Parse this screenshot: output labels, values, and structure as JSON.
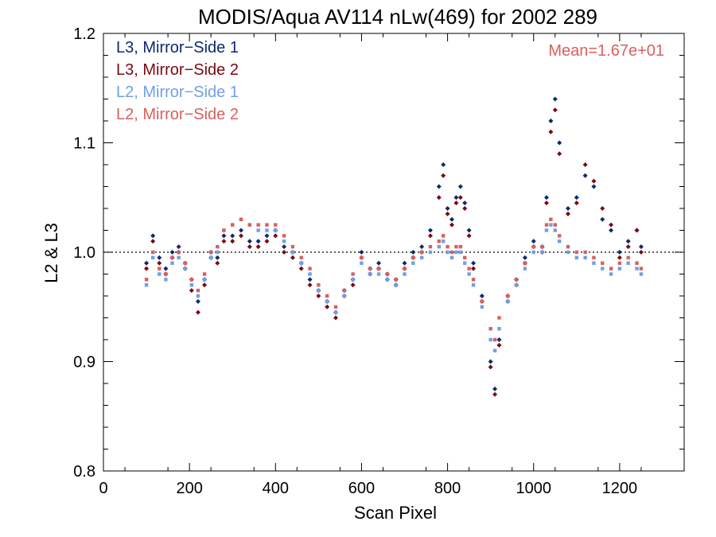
{
  "chart_data": {
    "type": "scatter",
    "title": "MODIS/Aqua AV114 nLw(469) for 2002 289",
    "xlabel": "Scan Pixel",
    "ylabel": "L2 & L3",
    "xlim": [
      0,
      1350
    ],
    "ylim": [
      0.8,
      1.2
    ],
    "xticks": [
      0,
      200,
      400,
      600,
      800,
      1000,
      1200
    ],
    "yticks": [
      0.8,
      0.9,
      1.0,
      1.1,
      1.2
    ],
    "xtick_labels": [
      "0",
      "200",
      "400",
      "600",
      "800",
      "1000",
      "1200"
    ],
    "ytick_labels": [
      "0.8",
      "0.9",
      "1.0",
      "1.1",
      "1.2"
    ],
    "reference_line": 1.0,
    "legend_position": "top-left",
    "annotation": "Mean=1.67e+01",
    "annotation_color": "#d9605e",
    "series": [
      {
        "name": "L3, Mirror−Side 1",
        "color": "#0b2a6e",
        "marker": "diamond",
        "x": [
          100,
          115,
          130,
          145,
          160,
          175,
          190,
          205,
          220,
          235,
          250,
          265,
          280,
          300,
          320,
          340,
          360,
          380,
          400,
          420,
          440,
          460,
          480,
          500,
          520,
          540,
          560,
          580,
          600,
          620,
          640,
          660,
          680,
          700,
          720,
          740,
          760,
          780,
          790,
          800,
          810,
          820,
          830,
          840,
          850,
          860,
          880,
          900,
          910,
          920,
          940,
          960,
          980,
          1000,
          1020,
          1030,
          1040,
          1050,
          1060,
          1080,
          1100,
          1120,
          1140,
          1160,
          1180,
          1200,
          1220,
          1240,
          1250
        ],
        "y": [
          0.99,
          1.015,
          0.995,
          0.985,
          1.0,
          1.005,
          0.99,
          0.975,
          0.955,
          0.975,
          1.0,
          0.995,
          1.015,
          1.015,
          1.02,
          1.01,
          1.01,
          1.015,
          1.02,
          1.005,
          1.0,
          0.99,
          0.975,
          0.965,
          0.955,
          0.945,
          0.965,
          0.975,
          1.0,
          0.985,
          0.99,
          0.98,
          0.975,
          0.99,
          1.0,
          1.005,
          1.02,
          1.06,
          1.08,
          1.04,
          1.03,
          1.05,
          1.06,
          1.045,
          1.02,
          0.99,
          0.96,
          0.9,
          0.875,
          0.92,
          0.96,
          0.975,
          0.995,
          1.01,
          1.005,
          1.05,
          1.12,
          1.14,
          1.1,
          1.04,
          1.05,
          1.07,
          1.06,
          1.03,
          1.02,
          1.0,
          1.01,
          1.02,
          1.005
        ]
      },
      {
        "name": "L3, Mirror−Side 2",
        "color": "#7a0a12",
        "marker": "diamond",
        "x": [
          100,
          115,
          130,
          145,
          160,
          175,
          190,
          205,
          220,
          235,
          250,
          265,
          280,
          300,
          320,
          340,
          360,
          380,
          400,
          420,
          440,
          460,
          480,
          500,
          520,
          540,
          560,
          580,
          600,
          620,
          640,
          660,
          680,
          700,
          720,
          740,
          760,
          780,
          790,
          800,
          810,
          820,
          830,
          840,
          850,
          860,
          880,
          900,
          910,
          920,
          940,
          960,
          980,
          1000,
          1020,
          1030,
          1040,
          1050,
          1060,
          1080,
          1100,
          1120,
          1140,
          1160,
          1180,
          1200,
          1220,
          1240,
          1250
        ],
        "y": [
          0.985,
          1.01,
          0.99,
          0.98,
          0.995,
          1.0,
          0.985,
          0.965,
          0.945,
          0.97,
          0.995,
          0.99,
          1.01,
          1.01,
          1.015,
          1.005,
          1.005,
          1.01,
          1.015,
          1.0,
          0.995,
          0.985,
          0.97,
          0.96,
          0.95,
          0.94,
          0.96,
          0.97,
          0.995,
          0.98,
          0.985,
          0.975,
          0.97,
          0.985,
          0.995,
          1.0,
          1.015,
          1.05,
          1.07,
          1.035,
          1.025,
          1.045,
          1.05,
          1.04,
          1.015,
          0.985,
          0.955,
          0.895,
          0.87,
          0.915,
          0.955,
          0.97,
          0.99,
          1.005,
          1.0,
          1.045,
          1.11,
          1.13,
          1.09,
          1.035,
          1.045,
          1.08,
          1.065,
          1.04,
          1.025,
          0.995,
          1.005,
          1.02,
          1.0
        ]
      },
      {
        "name": "L2, Mirror−Side 1",
        "color": "#6ea0ea",
        "marker": "square",
        "x": [
          100,
          115,
          130,
          145,
          160,
          175,
          190,
          205,
          220,
          235,
          250,
          265,
          280,
          300,
          320,
          340,
          360,
          380,
          400,
          420,
          440,
          460,
          480,
          500,
          520,
          540,
          560,
          580,
          600,
          620,
          640,
          660,
          680,
          700,
          720,
          740,
          760,
          780,
          790,
          800,
          810,
          820,
          830,
          840,
          850,
          860,
          880,
          900,
          910,
          920,
          940,
          960,
          980,
          1000,
          1020,
          1030,
          1040,
          1050,
          1060,
          1080,
          1100,
          1120,
          1140,
          1160,
          1180,
          1200,
          1220,
          1240,
          1250
        ],
        "y": [
          0.97,
          0.995,
          0.98,
          0.975,
          0.99,
          0.995,
          0.985,
          0.97,
          0.96,
          0.975,
          0.995,
          1.0,
          1.02,
          1.025,
          1.03,
          1.025,
          1.02,
          1.02,
          1.02,
          1.01,
          1.0,
          0.99,
          0.98,
          0.965,
          0.955,
          0.945,
          0.96,
          0.975,
          0.99,
          0.98,
          0.98,
          0.975,
          0.97,
          0.98,
          0.99,
          0.995,
          1.0,
          1.005,
          1.01,
          1.0,
          0.995,
          1.0,
          1.0,
          0.99,
          0.98,
          0.97,
          0.95,
          0.92,
          0.91,
          0.93,
          0.955,
          0.97,
          0.985,
          1.0,
          1.0,
          1.02,
          1.025,
          1.02,
          1.01,
          1.0,
          0.995,
          0.995,
          0.99,
          0.985,
          0.98,
          0.985,
          0.99,
          0.985,
          0.98
        ]
      },
      {
        "name": "L2, Mirror−Side 2",
        "color": "#d9605e",
        "marker": "square",
        "x": [
          100,
          115,
          130,
          145,
          160,
          175,
          190,
          205,
          220,
          235,
          250,
          265,
          280,
          300,
          320,
          340,
          360,
          380,
          400,
          420,
          440,
          460,
          480,
          500,
          520,
          540,
          560,
          580,
          600,
          620,
          640,
          660,
          680,
          700,
          720,
          740,
          760,
          780,
          790,
          800,
          810,
          820,
          830,
          840,
          850,
          860,
          880,
          900,
          910,
          920,
          940,
          960,
          980,
          1000,
          1020,
          1030,
          1040,
          1050,
          1060,
          1080,
          1100,
          1120,
          1140,
          1160,
          1180,
          1200,
          1220,
          1240,
          1250
        ],
        "y": [
          0.975,
          1.0,
          0.985,
          0.98,
          0.995,
          1.0,
          0.99,
          0.975,
          0.965,
          0.98,
          1.0,
          1.005,
          1.02,
          1.025,
          1.03,
          1.025,
          1.025,
          1.025,
          1.025,
          1.015,
          1.005,
          0.995,
          0.985,
          0.97,
          0.96,
          0.95,
          0.965,
          0.98,
          0.995,
          0.985,
          0.985,
          0.98,
          0.975,
          0.985,
          0.995,
          1.0,
          1.005,
          1.01,
          1.015,
          1.005,
          1.0,
          1.005,
          1.005,
          0.995,
          0.985,
          0.975,
          0.955,
          0.93,
          0.92,
          0.94,
          0.96,
          0.975,
          0.99,
          1.005,
          1.005,
          1.025,
          1.03,
          1.025,
          1.015,
          1.005,
          1.0,
          1.0,
          0.995,
          0.99,
          0.985,
          0.99,
          0.995,
          0.99,
          0.985
        ]
      }
    ]
  }
}
